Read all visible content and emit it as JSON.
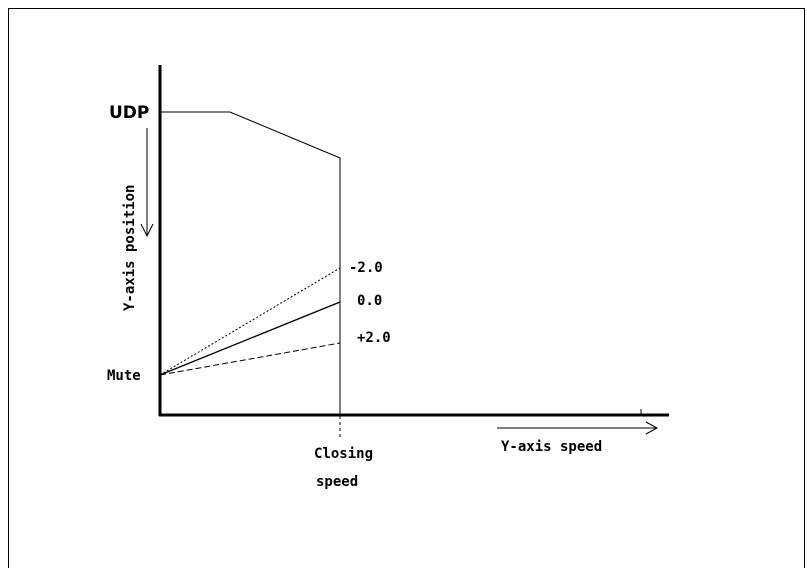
{
  "diagram": {
    "labels": {
      "udp": "UDP",
      "y_axis_position": "Y-axis position",
      "mute": "Mute",
      "y_axis_speed": "Y-axis speed",
      "closing": "Closing",
      "speed": "speed"
    },
    "speed_offsets": [
      "-2.0",
      "0.0",
      "+2.0"
    ]
  }
}
